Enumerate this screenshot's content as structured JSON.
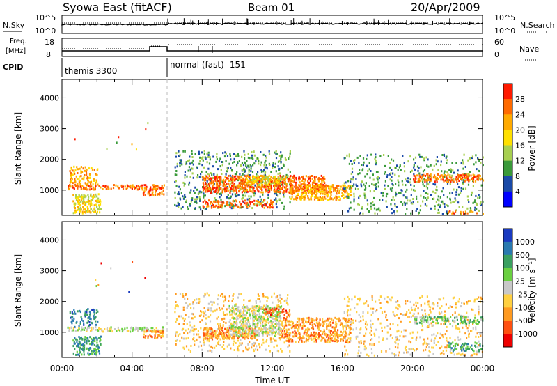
{
  "header": {
    "station": "Syowa East (fitACF)",
    "beam": "Beam 01",
    "date": "20/Apr/2009"
  },
  "top_panels": {
    "nsky_label": "N.Sky",
    "nsearch_label": "N.Search",
    "noise_ticks_left": [
      "10^5",
      "10^0"
    ],
    "noise_ticks_right": [
      "10^5",
      "10^0"
    ],
    "freq_label_line1": "Freq.",
    "freq_label_line2": "[MHz]",
    "freq_ticks": [
      "18",
      "8"
    ],
    "nave_label": "Nave",
    "nave_ticks": [
      "60",
      "0"
    ],
    "cpid_label": "CPID",
    "cpid_segments": [
      {
        "name": "themis 3300",
        "start_hour": 0,
        "end_hour": 6
      },
      {
        "name": "normal (fast) -151",
        "start_hour": 6,
        "end_hour": 24
      }
    ]
  },
  "x_axis": {
    "label": "Time UT",
    "ticks": [
      "00:00",
      "04:00",
      "08:00",
      "12:00",
      "16:00",
      "20:00",
      "00:00"
    ]
  },
  "chart_data": [
    {
      "type": "heatmap",
      "panel": "power",
      "xlabel": "Time UT",
      "ylabel": "Slant Range [km]",
      "xlim": [
        0,
        24
      ],
      "ylim": [
        180,
        4600
      ],
      "yticks": [
        "1000",
        "2000",
        "3000",
        "4000"
      ],
      "colorbar": {
        "label": "Power [dB]",
        "ticks": [
          "28",
          "24",
          "20",
          "16",
          "12",
          "8",
          "4"
        ],
        "colors": [
          "#ff1a00",
          "#ff6a00",
          "#ffaa00",
          "#ffe000",
          "#a8d050",
          "#3a9a3a",
          "#1a4aa8",
          "#0000ff"
        ]
      },
      "regions": [
        {
          "t0": 0.2,
          "t1": 5.8,
          "r0": 1050,
          "r1": 1200,
          "level": 1,
          "density": 0.55
        },
        {
          "t0": 0.6,
          "t1": 2.2,
          "r0": 280,
          "r1": 900,
          "level": 3,
          "density": 0.6
        },
        {
          "t0": 0.4,
          "t1": 2.0,
          "r0": 1200,
          "r1": 1800,
          "level": 2,
          "density": 0.35
        },
        {
          "t0": 4.6,
          "t1": 5.8,
          "r0": 850,
          "r1": 1100,
          "level": 1,
          "density": 0.5
        },
        {
          "t0": 6.4,
          "t1": 13.0,
          "r0": 400,
          "r1": 2300,
          "level": 5,
          "density": 0.18
        },
        {
          "t0": 8.0,
          "t1": 15.0,
          "r0": 950,
          "r1": 1500,
          "level": 1,
          "density": 0.65
        },
        {
          "t0": 10.5,
          "t1": 12.5,
          "r0": 1200,
          "r1": 1500,
          "level": 3,
          "density": 0.55
        },
        {
          "t0": 13.0,
          "t1": 16.5,
          "r0": 700,
          "r1": 1200,
          "level": 2,
          "density": 0.55
        },
        {
          "t0": 16.0,
          "t1": 24.0,
          "r0": 250,
          "r1": 2200,
          "level": 5,
          "density": 0.14
        },
        {
          "t0": 20.0,
          "t1": 24.0,
          "r0": 1300,
          "r1": 1550,
          "level": 1,
          "density": 0.5
        },
        {
          "t0": 8.0,
          "t1": 12.0,
          "r0": 450,
          "r1": 700,
          "level": 1,
          "density": 0.35
        },
        {
          "t0": 22.0,
          "t1": 24.0,
          "r0": 250,
          "r1": 350,
          "level": 1,
          "density": 0.4
        }
      ]
    },
    {
      "type": "heatmap",
      "panel": "velocity",
      "xlabel": "Time UT",
      "ylabel": "Slant Range [km]",
      "xlim": [
        0,
        24
      ],
      "ylim": [
        180,
        4600
      ],
      "yticks": [
        "1000",
        "2000",
        "3000",
        "4000"
      ],
      "colorbar": {
        "label": "Velocity [m s⁻¹]",
        "ticks": [
          "1000",
          "500",
          "100",
          "25",
          "-25",
          "-100",
          "-500",
          "-1000"
        ],
        "colors": [
          "#1a3ac0",
          "#2a7ab0",
          "#3aa060",
          "#6ad040",
          "#c8c8c8",
          "#ffd040",
          "#ff9a20",
          "#ff5010",
          "#ee0000"
        ]
      },
      "regions": [
        {
          "t0": 0.2,
          "t1": 5.8,
          "r0": 1050,
          "r1": 1200,
          "level": 4,
          "density": 0.55
        },
        {
          "t0": 0.6,
          "t1": 2.2,
          "r0": 280,
          "r1": 900,
          "level": 2,
          "density": 0.5
        },
        {
          "t0": 0.4,
          "t1": 2.0,
          "r0": 1200,
          "r1": 1800,
          "level": 1,
          "density": 0.35
        },
        {
          "t0": 4.6,
          "t1": 5.8,
          "r0": 850,
          "r1": 1100,
          "level": 6,
          "density": 0.5
        },
        {
          "t0": 6.4,
          "t1": 13.0,
          "r0": 400,
          "r1": 2300,
          "level": 5,
          "density": 0.16
        },
        {
          "t0": 8.0,
          "t1": 11.0,
          "r0": 800,
          "r1": 1200,
          "level": 6,
          "density": 0.6
        },
        {
          "t0": 9.5,
          "t1": 12.5,
          "r0": 900,
          "r1": 1900,
          "level": 4,
          "density": 0.55
        },
        {
          "t0": 11.5,
          "t1": 13.0,
          "r0": 1600,
          "r1": 1800,
          "level": 7,
          "density": 0.5
        },
        {
          "t0": 12.5,
          "t1": 16.5,
          "r0": 700,
          "r1": 1500,
          "level": 6,
          "density": 0.45
        },
        {
          "t0": 16.0,
          "t1": 24.0,
          "r0": 250,
          "r1": 2200,
          "level": 5,
          "density": 0.14
        },
        {
          "t0": 20.0,
          "t1": 24.0,
          "r0": 1300,
          "r1": 1550,
          "level": 3,
          "density": 0.45
        },
        {
          "t0": 22.0,
          "t1": 24.0,
          "r0": 400,
          "r1": 700,
          "level": 2,
          "density": 0.4
        }
      ]
    }
  ]
}
